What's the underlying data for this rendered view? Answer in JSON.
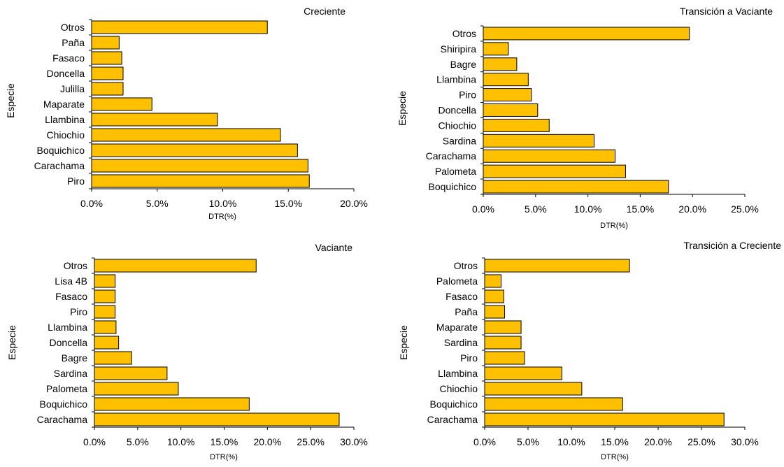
{
  "chart_data": [
    {
      "type": "bar",
      "orientation": "horizontal",
      "title": "Creciente",
      "xlabel": "DTR(%)",
      "ylabel": "Especie",
      "categories": [
        "Otros",
        "Paña",
        "Fasaco",
        "Doncella",
        "Julilla",
        "Maparate",
        "Llambina",
        "Chiochio",
        "Boquichico",
        "Carachama",
        "Piro"
      ],
      "values": [
        13.4,
        2.1,
        2.3,
        2.4,
        2.4,
        4.6,
        9.6,
        14.4,
        15.7,
        16.5,
        16.6
      ],
      "xlim": [
        0,
        20
      ],
      "ticks": [
        "0.0%",
        "5.0%",
        "10.0%",
        "15.0%",
        "20.0%"
      ],
      "bar_color": "#FFC000"
    },
    {
      "type": "bar",
      "orientation": "horizontal",
      "title": "Transición a Vaciante",
      "xlabel": "DTR(%)",
      "ylabel": "Especie",
      "categories": [
        "Otros",
        "Shiripira",
        "Bagre",
        "Llambina",
        "Piro",
        "Doncella",
        "Chiochio",
        "Sardina",
        "Carachama",
        "Palometa",
        "Boquichico"
      ],
      "values": [
        19.7,
        2.4,
        3.2,
        4.3,
        4.6,
        5.2,
        6.3,
        10.6,
        12.6,
        13.6,
        17.7
      ],
      "xlim": [
        0,
        25
      ],
      "ticks": [
        "0.0%",
        "5.0%",
        "10.0%",
        "15.0%",
        "20.0%",
        "25.0%"
      ],
      "bar_color": "#FFC000"
    },
    {
      "type": "bar",
      "orientation": "horizontal",
      "title": "Vaciante",
      "xlabel": "DTR(%)",
      "ylabel": "Especie",
      "categories": [
        "Otros",
        "Lisa 4B",
        "Fasaco",
        "Piro",
        "Llambina",
        "Doncella",
        "Bagre",
        "Sardina",
        "Palometa",
        "Boquichico",
        "Carachama"
      ],
      "values": [
        18.7,
        2.4,
        2.4,
        2.4,
        2.5,
        2.8,
        4.3,
        8.4,
        9.7,
        17.9,
        28.3
      ],
      "xlim": [
        0,
        30
      ],
      "ticks": [
        "0.0%",
        "5.0%",
        "10.0%",
        "15.0%",
        "20.0%",
        "25.0%",
        "30.0%"
      ],
      "bar_color": "#FFC000"
    },
    {
      "type": "bar",
      "orientation": "horizontal",
      "title": "Transición a Creciente",
      "xlabel": "DTR(%)",
      "ylabel": "Especie",
      "categories": [
        "Otros",
        "Palometa",
        "Fasaco",
        "Paña",
        "Maparate",
        "Sardina",
        "Piro",
        "Llambina",
        "Chiochio",
        "Boquichico",
        "Carachama"
      ],
      "values": [
        16.7,
        1.9,
        2.2,
        2.3,
        4.2,
        4.2,
        4.6,
        8.9,
        11.2,
        15.9,
        27.6
      ],
      "xlim": [
        0,
        30
      ],
      "ticks": [
        "0.0%",
        "5.0%",
        "10.0%",
        "15.0%",
        "20.0%",
        "25.0%",
        "30.0%"
      ],
      "bar_color": "#FFC000"
    }
  ]
}
